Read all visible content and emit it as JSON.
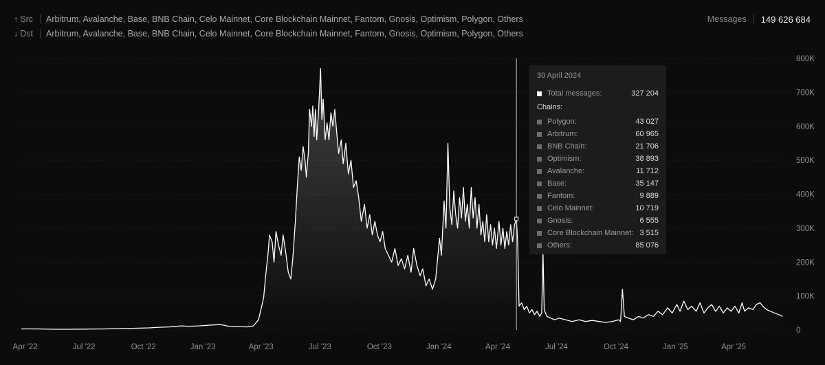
{
  "filters": {
    "src": {
      "arrow": "↑",
      "label": "Src",
      "value": "Arbitrum, Avalanche, Base, BNB Chain, Celo Mainnet, Core Blockchain Mainnet, Fantom, Gnosis, Optimism, Polygon, Others"
    },
    "dst": {
      "arrow": "↓",
      "label": "Dst",
      "value": "Arbitrum, Avalanche, Base, BNB Chain, Celo Mainnet, Core Blockchain Mainnet, Fantom, Gnosis, Optimism, Polygon, Others"
    }
  },
  "messages": {
    "label": "Messages",
    "value": "149 626 684"
  },
  "colors": {
    "background": "#0c0c0c",
    "line": "#ffffff",
    "grid": "#2a2a2a",
    "tooltip_bg": "#1c1c1c"
  },
  "tooltip": {
    "date": "30 April 2024",
    "total_label": "Total messages:",
    "total_value": "327 204",
    "chains_heading": "Chains:",
    "chains": [
      {
        "name": "Polygon:",
        "value": "43 027"
      },
      {
        "name": "Arbitrum:",
        "value": "60 965"
      },
      {
        "name": "BNB Chain:",
        "value": "21 706"
      },
      {
        "name": "Optimism:",
        "value": "38 893"
      },
      {
        "name": "Avalanche:",
        "value": "11 712"
      },
      {
        "name": "Base:",
        "value": "35 147"
      },
      {
        "name": "Fantom:",
        "value": "9 889"
      },
      {
        "name": "Celo Mainnet:",
        "value": "10 719"
      },
      {
        "name": "Gnosis:",
        "value": "6 555"
      },
      {
        "name": "Core Blockchain Mainnet:",
        "value": "3 515"
      },
      {
        "name": "Others:",
        "value": "85 076"
      }
    ]
  },
  "chart_data": {
    "type": "area",
    "title": "",
    "xlabel": "",
    "ylabel": "",
    "ylim": [
      0,
      800000
    ],
    "xlim": [
      "2022-03-25",
      "2025-06-26"
    ],
    "grid": true,
    "y_ticks": [
      {
        "value": 0,
        "label": "0"
      },
      {
        "value": 100000,
        "label": "100K"
      },
      {
        "value": 200000,
        "label": "200K"
      },
      {
        "value": 300000,
        "label": "300K"
      },
      {
        "value": 400000,
        "label": "400K"
      },
      {
        "value": 500000,
        "label": "500K"
      },
      {
        "value": 600000,
        "label": "600K"
      },
      {
        "value": 700000,
        "label": "700K"
      },
      {
        "value": 800000,
        "label": "800K"
      }
    ],
    "x_ticks": [
      {
        "date": "2022-04-01",
        "label": "Apr '22"
      },
      {
        "date": "2022-07-01",
        "label": "Jul '22"
      },
      {
        "date": "2022-10-01",
        "label": "Oct '22"
      },
      {
        "date": "2023-01-01",
        "label": "Jan '23"
      },
      {
        "date": "2023-04-01",
        "label": "Apr '23"
      },
      {
        "date": "2023-07-01",
        "label": "Jul '23"
      },
      {
        "date": "2023-10-01",
        "label": "Oct '23"
      },
      {
        "date": "2024-01-01",
        "label": "Jan '24"
      },
      {
        "date": "2024-04-01",
        "label": "Apr '24"
      },
      {
        "date": "2024-07-01",
        "label": "Jul '24"
      },
      {
        "date": "2024-10-01",
        "label": "Oct '24"
      },
      {
        "date": "2025-01-01",
        "label": "Jan '25"
      },
      {
        "date": "2025-04-01",
        "label": "Apr '25"
      }
    ],
    "hover": {
      "date": "2024-04-30",
      "value": 327204
    },
    "series": [
      {
        "values": [
          [
            "2022-03-26",
            3000
          ],
          [
            "2022-04-20",
            3000
          ],
          [
            "2022-05-15",
            2000
          ],
          [
            "2022-06-10",
            2000
          ],
          [
            "2022-07-05",
            2500
          ],
          [
            "2022-08-01",
            3000
          ],
          [
            "2022-08-25",
            4000
          ],
          [
            "2022-09-20",
            5000
          ],
          [
            "2022-10-10",
            6000
          ],
          [
            "2022-10-25",
            8000
          ],
          [
            "2022-11-10",
            9000
          ],
          [
            "2022-11-28",
            12000
          ],
          [
            "2022-12-10",
            11000
          ],
          [
            "2022-12-25",
            12000
          ],
          [
            "2023-01-10",
            14000
          ],
          [
            "2023-01-28",
            16000
          ],
          [
            "2023-02-10",
            11000
          ],
          [
            "2023-02-25",
            10000
          ],
          [
            "2023-03-10",
            9000
          ],
          [
            "2023-03-20",
            12000
          ],
          [
            "2023-03-28",
            30000
          ],
          [
            "2023-04-02",
            70000
          ],
          [
            "2023-04-05",
            95000
          ],
          [
            "2023-04-08",
            160000
          ],
          [
            "2023-04-12",
            230000
          ],
          [
            "2023-04-14",
            280000
          ],
          [
            "2023-04-18",
            260000
          ],
          [
            "2023-04-21",
            200000
          ],
          [
            "2023-04-24",
            290000
          ],
          [
            "2023-04-28",
            250000
          ],
          [
            "2023-05-02",
            220000
          ],
          [
            "2023-05-05",
            280000
          ],
          [
            "2023-05-09",
            230000
          ],
          [
            "2023-05-13",
            170000
          ],
          [
            "2023-05-17",
            150000
          ],
          [
            "2023-05-20",
            210000
          ],
          [
            "2023-05-24",
            320000
          ],
          [
            "2023-05-27",
            420000
          ],
          [
            "2023-05-30",
            510000
          ],
          [
            "2023-06-02",
            470000
          ],
          [
            "2023-06-05",
            540000
          ],
          [
            "2023-06-08",
            500000
          ],
          [
            "2023-06-10",
            450000
          ],
          [
            "2023-06-13",
            520000
          ],
          [
            "2023-06-15",
            650000
          ],
          [
            "2023-06-18",
            600000
          ],
          [
            "2023-06-20",
            660000
          ],
          [
            "2023-06-22",
            570000
          ],
          [
            "2023-06-24",
            650000
          ],
          [
            "2023-06-26",
            560000
          ],
          [
            "2023-06-29",
            650000
          ],
          [
            "2023-07-02",
            770000
          ],
          [
            "2023-07-04",
            620000
          ],
          [
            "2023-07-06",
            680000
          ],
          [
            "2023-07-09",
            560000
          ],
          [
            "2023-07-12",
            610000
          ],
          [
            "2023-07-15",
            560000
          ],
          [
            "2023-07-18",
            640000
          ],
          [
            "2023-07-21",
            600000
          ],
          [
            "2023-07-24",
            650000
          ],
          [
            "2023-07-27",
            580000
          ],
          [
            "2023-07-30",
            520000
          ],
          [
            "2023-08-03",
            560000
          ],
          [
            "2023-08-06",
            490000
          ],
          [
            "2023-08-10",
            550000
          ],
          [
            "2023-08-14",
            460000
          ],
          [
            "2023-08-18",
            500000
          ],
          [
            "2023-08-22",
            420000
          ],
          [
            "2023-08-26",
            440000
          ],
          [
            "2023-08-30",
            390000
          ],
          [
            "2023-09-03",
            320000
          ],
          [
            "2023-09-08",
            370000
          ],
          [
            "2023-09-12",
            300000
          ],
          [
            "2023-09-16",
            340000
          ],
          [
            "2023-09-20",
            280000
          ],
          [
            "2023-09-24",
            320000
          ],
          [
            "2023-09-28",
            280000
          ],
          [
            "2023-10-02",
            260000
          ],
          [
            "2023-10-06",
            290000
          ],
          [
            "2023-10-10",
            240000
          ],
          [
            "2023-10-15",
            220000
          ],
          [
            "2023-10-20",
            200000
          ],
          [
            "2023-10-25",
            240000
          ],
          [
            "2023-10-30",
            190000
          ],
          [
            "2023-11-04",
            210000
          ],
          [
            "2023-11-09",
            180000
          ],
          [
            "2023-11-14",
            220000
          ],
          [
            "2023-11-19",
            170000
          ],
          [
            "2023-11-23",
            240000
          ],
          [
            "2023-11-28",
            190000
          ],
          [
            "2023-12-03",
            160000
          ],
          [
            "2023-12-07",
            180000
          ],
          [
            "2023-12-12",
            130000
          ],
          [
            "2023-12-17",
            150000
          ],
          [
            "2023-12-22",
            120000
          ],
          [
            "2023-12-27",
            150000
          ],
          [
            "2024-01-02",
            270000
          ],
          [
            "2024-01-05",
            220000
          ],
          [
            "2024-01-09",
            380000
          ],
          [
            "2024-01-12",
            300000
          ],
          [
            "2024-01-15",
            550000
          ],
          [
            "2024-01-18",
            360000
          ],
          [
            "2024-01-21",
            310000
          ],
          [
            "2024-01-24",
            410000
          ],
          [
            "2024-01-27",
            340000
          ],
          [
            "2024-01-30",
            300000
          ],
          [
            "2024-02-02",
            390000
          ],
          [
            "2024-02-05",
            330000
          ],
          [
            "2024-02-08",
            420000
          ],
          [
            "2024-02-11",
            320000
          ],
          [
            "2024-02-14",
            370000
          ],
          [
            "2024-02-17",
            300000
          ],
          [
            "2024-02-20",
            420000
          ],
          [
            "2024-02-23",
            330000
          ],
          [
            "2024-02-26",
            390000
          ],
          [
            "2024-02-29",
            300000
          ],
          [
            "2024-03-03",
            370000
          ],
          [
            "2024-03-06",
            280000
          ],
          [
            "2024-03-09",
            320000
          ],
          [
            "2024-03-12",
            260000
          ],
          [
            "2024-03-15",
            340000
          ],
          [
            "2024-03-18",
            260000
          ],
          [
            "2024-03-21",
            310000
          ],
          [
            "2024-03-24",
            250000
          ],
          [
            "2024-03-27",
            300000
          ],
          [
            "2024-03-30",
            240000
          ],
          [
            "2024-04-03",
            320000
          ],
          [
            "2024-04-06",
            250000
          ],
          [
            "2024-04-09",
            300000
          ],
          [
            "2024-04-12",
            240000
          ],
          [
            "2024-04-15",
            290000
          ],
          [
            "2024-04-18",
            250000
          ],
          [
            "2024-04-21",
            310000
          ],
          [
            "2024-04-24",
            260000
          ],
          [
            "2024-04-27",
            310000
          ],
          [
            "2024-04-30",
            327204
          ],
          [
            "2024-05-02",
            250000
          ],
          [
            "2024-05-04",
            70000
          ],
          [
            "2024-05-08",
            80000
          ],
          [
            "2024-05-12",
            60000
          ],
          [
            "2024-05-16",
            70000
          ],
          [
            "2024-05-20",
            50000
          ],
          [
            "2024-05-24",
            60000
          ],
          [
            "2024-05-28",
            45000
          ],
          [
            "2024-06-01",
            55000
          ],
          [
            "2024-06-05",
            40000
          ],
          [
            "2024-06-08",
            50000
          ],
          [
            "2024-06-10",
            230000
          ],
          [
            "2024-06-12",
            60000
          ],
          [
            "2024-06-16",
            40000
          ],
          [
            "2024-06-22",
            35000
          ],
          [
            "2024-06-28",
            30000
          ],
          [
            "2024-07-05",
            35000
          ],
          [
            "2024-07-15",
            30000
          ],
          [
            "2024-07-25",
            25000
          ],
          [
            "2024-08-05",
            30000
          ],
          [
            "2024-08-15",
            25000
          ],
          [
            "2024-08-25",
            28000
          ],
          [
            "2024-09-05",
            25000
          ],
          [
            "2024-09-15",
            22000
          ],
          [
            "2024-09-25",
            25000
          ],
          [
            "2024-10-05",
            30000
          ],
          [
            "2024-10-08",
            25000
          ],
          [
            "2024-10-11",
            120000
          ],
          [
            "2024-10-14",
            40000
          ],
          [
            "2024-10-20",
            35000
          ],
          [
            "2024-10-28",
            30000
          ],
          [
            "2024-11-05",
            40000
          ],
          [
            "2024-11-12",
            35000
          ],
          [
            "2024-11-20",
            45000
          ],
          [
            "2024-11-28",
            40000
          ],
          [
            "2024-12-05",
            55000
          ],
          [
            "2024-12-12",
            45000
          ],
          [
            "2024-12-20",
            65000
          ],
          [
            "2024-12-27",
            50000
          ],
          [
            "2025-01-03",
            75000
          ],
          [
            "2025-01-08",
            55000
          ],
          [
            "2025-01-14",
            85000
          ],
          [
            "2025-01-20",
            60000
          ],
          [
            "2025-01-26",
            70000
          ],
          [
            "2025-02-02",
            55000
          ],
          [
            "2025-02-08",
            80000
          ],
          [
            "2025-02-14",
            50000
          ],
          [
            "2025-02-20",
            65000
          ],
          [
            "2025-02-26",
            75000
          ],
          [
            "2025-03-04",
            55000
          ],
          [
            "2025-03-10",
            70000
          ],
          [
            "2025-03-16",
            50000
          ],
          [
            "2025-03-22",
            65000
          ],
          [
            "2025-03-28",
            55000
          ],
          [
            "2025-04-03",
            70000
          ],
          [
            "2025-04-09",
            50000
          ],
          [
            "2025-04-14",
            80000
          ],
          [
            "2025-04-18",
            55000
          ],
          [
            "2025-04-24",
            65000
          ],
          [
            "2025-05-01",
            60000
          ],
          [
            "2025-05-06",
            75000
          ],
          [
            "2025-05-12",
            80000
          ],
          [
            "2025-05-16",
            70000
          ],
          [
            "2025-05-22",
            60000
          ],
          [
            "2025-05-28",
            55000
          ],
          [
            "2025-06-03",
            50000
          ],
          [
            "2025-06-10",
            45000
          ],
          [
            "2025-06-16",
            40000
          ]
        ]
      }
    ]
  }
}
